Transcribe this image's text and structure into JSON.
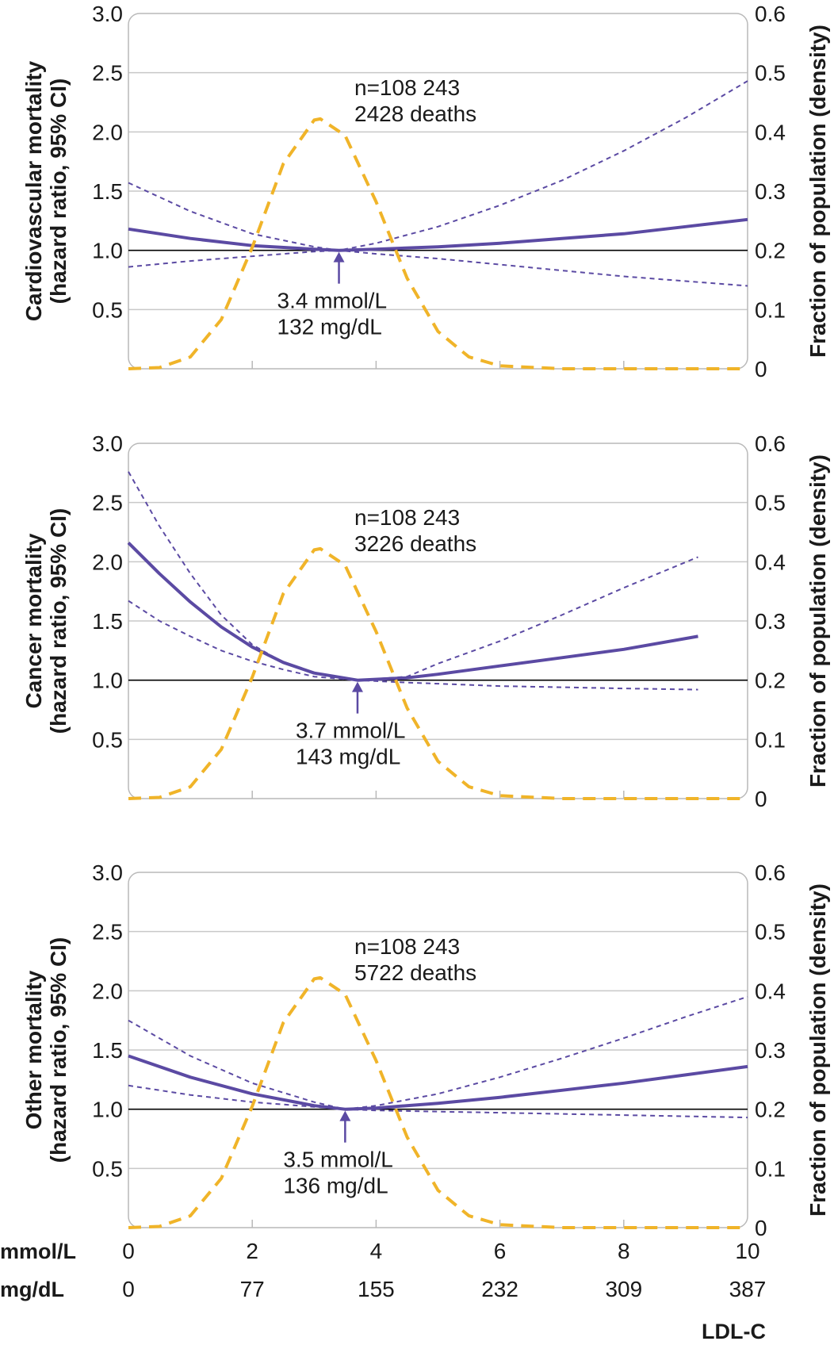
{
  "colors": {
    "hr_line": "#5b4aa3",
    "ci_line": "#5b4aa3",
    "density_line": "#f0b429",
    "grid": "#c8c8c8",
    "reference_line": "#000000",
    "frame": "#b9b9b9",
    "text": "#1a1a1a"
  },
  "x_axis": {
    "unit_label_mmol": "mmol/L",
    "unit_label_mg": "mg/dL",
    "ticks_mmol": [
      "0",
      "2",
      "4",
      "6",
      "8",
      "10"
    ],
    "ticks_mg": [
      "0",
      "77",
      "155",
      "232",
      "309",
      "387"
    ],
    "xlabel": "LDL-C"
  },
  "chart_data": [
    {
      "type": "line",
      "panel": "cardiovascular",
      "ylabel_line1": "Cardiovascular mortality",
      "ylabel_line2": "(hazard ratio, 95% CI)",
      "y2label": "Fraction of population (density)",
      "xlim": [
        0,
        10
      ],
      "ylim": [
        0,
        3.0
      ],
      "y2lim": [
        0,
        0.6
      ],
      "y_ticks": [
        "0.5",
        "1.0",
        "1.5",
        "2.0",
        "2.5",
        "3.0"
      ],
      "y2_ticks": [
        "0",
        "0.1",
        "0.2",
        "0.3",
        "0.4",
        "0.5",
        "0.6"
      ],
      "annotation_n": "n=108 243",
      "annotation_deaths": "2428 deaths",
      "nadir_label_mmol": "3.4 mmol/L",
      "nadir_label_mg": "132 mg/dL",
      "nadir_x": 3.4,
      "series": [
        {
          "role": "hr",
          "x": [
            0,
            1,
            2,
            3,
            3.4,
            4,
            5,
            6,
            7,
            8,
            9,
            10
          ],
          "y": [
            1.18,
            1.1,
            1.04,
            1.01,
            1.0,
            1.01,
            1.03,
            1.06,
            1.1,
            1.14,
            1.2,
            1.26
          ]
        },
        {
          "role": "ci_upper",
          "x": [
            0,
            1,
            2,
            3,
            3.4,
            4,
            5,
            6,
            7,
            8,
            9,
            10
          ],
          "y": [
            1.57,
            1.33,
            1.14,
            1.03,
            1.0,
            1.06,
            1.2,
            1.38,
            1.59,
            1.84,
            2.12,
            2.43
          ]
        },
        {
          "role": "ci_lower",
          "x": [
            0,
            1,
            2,
            3,
            3.4,
            4,
            5,
            6,
            7,
            8,
            9,
            10
          ],
          "y": [
            0.86,
            0.91,
            0.95,
            0.99,
            1.0,
            0.97,
            0.93,
            0.88,
            0.83,
            0.78,
            0.74,
            0.7
          ]
        },
        {
          "role": "density",
          "x": [
            0,
            0.5,
            1,
            1.5,
            2,
            2.5,
            3,
            3.1,
            3.5,
            4,
            4.5,
            5,
            5.5,
            6,
            7,
            8,
            9,
            10
          ],
          "y": [
            0.0,
            0.002,
            0.02,
            0.083,
            0.205,
            0.346,
            0.42,
            0.422,
            0.394,
            0.282,
            0.153,
            0.063,
            0.02,
            0.005,
            0.0,
            0.0,
            0.0,
            0.0
          ]
        }
      ]
    },
    {
      "type": "line",
      "panel": "cancer",
      "ylabel_line1": "Cancer mortality",
      "ylabel_line2": "(hazard ratio, 95% CI)",
      "y2label": "Fraction of population (density)",
      "xlim": [
        0,
        10
      ],
      "ylim": [
        0,
        3.0
      ],
      "y2lim": [
        0,
        0.6
      ],
      "y_ticks": [
        "0.5",
        "1.0",
        "1.5",
        "2.0",
        "2.5",
        "3.0"
      ],
      "y2_ticks": [
        "0",
        "0.1",
        "0.2",
        "0.3",
        "0.4",
        "0.5",
        "0.6"
      ],
      "annotation_n": "n=108 243",
      "annotation_deaths": "3226 deaths",
      "nadir_label_mmol": "3.7 mmol/L",
      "nadir_label_mg": "143 mg/dL",
      "nadir_x": 3.7,
      "series": [
        {
          "role": "hr",
          "x": [
            0,
            0.5,
            1,
            1.5,
            2,
            2.5,
            3,
            3.7,
            4.5,
            5,
            6,
            7,
            8,
            9.2
          ],
          "y": [
            2.16,
            1.9,
            1.66,
            1.45,
            1.28,
            1.15,
            1.06,
            1.0,
            1.02,
            1.05,
            1.12,
            1.19,
            1.26,
            1.37
          ]
        },
        {
          "role": "ci_upper",
          "x": [
            0,
            0.5,
            1,
            1.5,
            2,
            2.5,
            3,
            3.7,
            4.5,
            5,
            6,
            7,
            8,
            9.2
          ],
          "y": [
            2.76,
            2.3,
            1.9,
            1.55,
            1.3,
            1.15,
            1.06,
            1.0,
            1.03,
            1.14,
            1.33,
            1.55,
            1.78,
            2.04
          ]
        },
        {
          "role": "ci_lower",
          "x": [
            0,
            0.5,
            1,
            1.5,
            2,
            2.5,
            3,
            3.7,
            4.5,
            5,
            6,
            7,
            8,
            9.2
          ],
          "y": [
            1.67,
            1.5,
            1.37,
            1.25,
            1.16,
            1.09,
            1.03,
            1.0,
            0.98,
            0.97,
            0.95,
            0.94,
            0.93,
            0.92
          ]
        },
        {
          "role": "density",
          "x": [
            0,
            0.5,
            1,
            1.5,
            2,
            2.5,
            3,
            3.1,
            3.5,
            4,
            4.5,
            5,
            5.5,
            6,
            7,
            8,
            9,
            10
          ],
          "y": [
            0.0,
            0.002,
            0.02,
            0.083,
            0.205,
            0.346,
            0.42,
            0.422,
            0.394,
            0.282,
            0.153,
            0.063,
            0.02,
            0.005,
            0.0,
            0.0,
            0.0,
            0.0
          ]
        }
      ]
    },
    {
      "type": "line",
      "panel": "other",
      "ylabel_line1": "Other mortality",
      "ylabel_line2": "(hazard ratio, 95% CI)",
      "y2label": "Fraction of population (density)",
      "xlim": [
        0,
        10
      ],
      "ylim": [
        0,
        3.0
      ],
      "y2lim": [
        0,
        0.6
      ],
      "y_ticks": [
        "0.5",
        "1.0",
        "1.5",
        "2.0",
        "2.5",
        "3.0"
      ],
      "y2_ticks": [
        "0",
        "0.1",
        "0.2",
        "0.3",
        "0.4",
        "0.5",
        "0.6"
      ],
      "annotation_n": "n=108 243",
      "annotation_deaths": "5722 deaths",
      "nadir_label_mmol": "3.5 mmol/L",
      "nadir_label_mg": "136 mg/dL",
      "nadir_x": 3.5,
      "series": [
        {
          "role": "hr",
          "x": [
            0,
            1,
            2,
            3,
            3.5,
            4,
            5,
            6,
            7,
            8,
            9,
            10
          ],
          "y": [
            1.45,
            1.27,
            1.13,
            1.03,
            1.0,
            1.01,
            1.05,
            1.1,
            1.16,
            1.22,
            1.29,
            1.36
          ]
        },
        {
          "role": "ci_upper",
          "x": [
            0,
            1,
            2,
            3,
            3.5,
            4,
            5,
            6,
            7,
            8,
            9,
            10
          ],
          "y": [
            1.75,
            1.45,
            1.22,
            1.06,
            1.0,
            1.03,
            1.13,
            1.27,
            1.43,
            1.6,
            1.78,
            1.95
          ]
        },
        {
          "role": "ci_lower",
          "x": [
            0,
            1,
            2,
            3,
            3.5,
            4,
            5,
            6,
            7,
            8,
            9,
            10
          ],
          "y": [
            1.2,
            1.12,
            1.06,
            1.02,
            1.0,
            0.99,
            0.98,
            0.97,
            0.96,
            0.95,
            0.94,
            0.93
          ]
        },
        {
          "role": "density",
          "x": [
            0,
            0.5,
            1,
            1.5,
            2,
            2.5,
            3,
            3.1,
            3.5,
            4,
            4.5,
            5,
            5.5,
            6,
            7,
            8,
            9,
            10
          ],
          "y": [
            0.0,
            0.002,
            0.02,
            0.083,
            0.205,
            0.346,
            0.42,
            0.422,
            0.394,
            0.282,
            0.153,
            0.063,
            0.02,
            0.005,
            0.0,
            0.0,
            0.0,
            0.0
          ]
        }
      ]
    }
  ]
}
